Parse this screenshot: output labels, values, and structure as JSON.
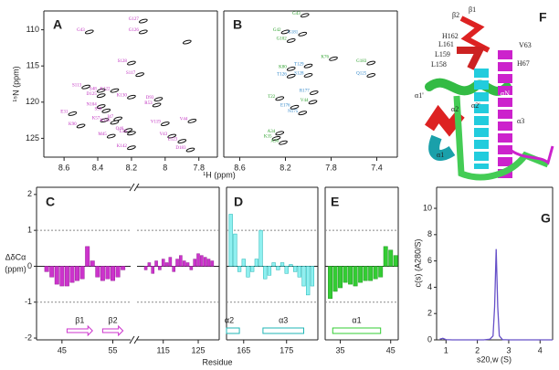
{
  "chart_data": [
    {
      "type": "spectrum",
      "panel": "A",
      "ylabel": "¹⁵N (ppm)",
      "xlim": [
        8.72,
        7.69
      ],
      "ylim": [
        127.6,
        107.4
      ],
      "xticks": [
        8.6,
        8.4,
        8.2,
        8.0,
        7.8
      ],
      "yticks": [
        110,
        115,
        120,
        125
      ],
      "label_color": "#c030c0",
      "peaks": {
        "x": [
          8.13,
          8.13,
          8.45,
          7.87,
          8.2,
          8.15,
          8.47,
          8.38,
          8.3,
          8.38,
          8.2,
          8.04,
          8.05,
          8.38,
          8.55,
          8.35,
          8.28,
          8.36,
          8.3,
          7.84,
          8.0,
          8.5,
          8.22,
          8.2,
          7.96,
          8.32,
          7.9,
          8.2,
          7.85
        ],
        "y": [
          108.8,
          110.3,
          110.3,
          111.7,
          114.6,
          116.2,
          117.9,
          118.4,
          118.4,
          119.1,
          119.3,
          119.6,
          120.4,
          120.6,
          121.6,
          121.2,
          122.3,
          122.5,
          122.8,
          122.6,
          123.0,
          123.3,
          123.9,
          124.3,
          124.7,
          124.7,
          125.4,
          126.3,
          126.6
        ],
        "labels": [
          "G127",
          "G126",
          "G43",
          null,
          "S128",
          "S117",
          "S113",
          "S48",
          "K122",
          "D125",
          "K130",
          "D93",
          "R53",
          "N104",
          "E31",
          "S50",
          "I47",
          "K57",
          "K116",
          "V44",
          "V119",
          "K90",
          "Q46",
          "L58",
          "V43",
          "M45",
          "L123",
          "K142",
          "D183"
        ]
      }
    },
    {
      "type": "spectrum",
      "panel": "B",
      "xlabel": "¹H (ppm)",
      "xlim": [
        8.74,
        7.22
      ],
      "ylim": [
        127.6,
        107.4
      ],
      "xticks": [
        8.6,
        8.2,
        7.8,
        7.4
      ],
      "peaks": {
        "x": [
          8.03,
          8.2,
          8.05,
          8.15,
          7.78,
          7.45,
          7.45,
          8.15,
          8.0,
          8.15,
          8.0,
          7.95,
          8.25,
          7.96,
          8.12,
          8.05,
          8.25,
          8.28,
          8.22
        ],
        "y": [
          108.0,
          110.3,
          110.6,
          111.5,
          114.0,
          114.6,
          116.3,
          115.4,
          115.0,
          116.4,
          116.3,
          118.7,
          119.5,
          120.0,
          120.7,
          121.5,
          124.3,
          125.0,
          125.6
        ],
        "labels": [
          "G43",
          "G42",
          "G181",
          "G102",
          "K76",
          "G183",
          "Q125",
          "K80",
          "T129",
          "T126",
          "S128",
          "R177",
          "T22",
          "V44",
          "E176",
          "N175",
          "A34",
          "K35",
          "A36"
        ]
      },
      "peak_label_colors": [
        "#2ca02c",
        "#2ca02c",
        "#2f86c8",
        "#2ca02c",
        "#2ca02c",
        "#2ca02c",
        "#2f86c8",
        "#2ca02c",
        "#2f86c8",
        "#2f86c8",
        "#2f86c8",
        "#2f86c8",
        "#2ca02c",
        "#2ca02c",
        "#2f86c8",
        "#2f86c8",
        "#2ca02c",
        "#2ca02c",
        "#2ca02c"
      ]
    },
    {
      "type": "bar",
      "panel": "C",
      "ylabel": "ΔδCα",
      "ylabel_unit": "(ppm)",
      "color": "#cc33cc",
      "stroke": "#992299",
      "xlim": [
        40,
        58.5
      ],
      "ylim": [
        -2.05,
        2.2
      ],
      "xticks": [
        45,
        55
      ],
      "yticks": [
        -2,
        -1,
        0,
        1,
        2
      ],
      "ref_lines": [
        -1,
        1
      ],
      "x": [
        42,
        43,
        44,
        45,
        46,
        47,
        48,
        49,
        50,
        51,
        52,
        53,
        54,
        55,
        56,
        57
      ],
      "values": [
        -0.15,
        -0.3,
        -0.5,
        -0.55,
        -0.55,
        -0.45,
        -0.4,
        -0.35,
        0.55,
        0.15,
        -0.3,
        -0.4,
        -0.35,
        -0.4,
        -0.3,
        -0.1
      ],
      "ss": [
        {
          "label": "β1",
          "kind": "strand",
          "start": 46,
          "end": 51
        },
        {
          "label": "β2",
          "kind": "strand",
          "start": 53,
          "end": 57
        }
      ],
      "ss_color": "#cc33cc"
    },
    {
      "type": "bar",
      "color": "#cc33cc",
      "stroke": "#992299",
      "xlim": [
        107.5,
        131
      ],
      "ylim": [
        -2.05,
        2.2
      ],
      "xticks": [
        115,
        125
      ],
      "ref_lines": [
        -1,
        1
      ],
      "x": [
        110,
        111,
        112,
        113,
        114,
        115,
        116,
        117,
        118,
        119,
        120,
        121,
        122,
        123,
        124,
        125,
        126,
        127,
        128,
        129
      ],
      "values": [
        -0.1,
        0.1,
        -0.2,
        0.15,
        -0.1,
        0.2,
        0.1,
        0.25,
        -0.15,
        0.2,
        0.3,
        0.15,
        0.1,
        -0.1,
        0.2,
        0.35,
        0.3,
        0.25,
        0.2,
        0.15
      ]
    },
    {
      "type": "bar",
      "panel": "D",
      "xlabel": "Residue",
      "color": "#8ff0f0",
      "stroke": "#1fb5b5",
      "xlim": [
        161,
        182.3
      ],
      "ylim": [
        -2.05,
        2.2
      ],
      "xticks": [
        165,
        175
      ],
      "ref_lines": [
        -1,
        1
      ],
      "x": [
        162,
        163,
        164,
        165,
        166,
        167,
        168,
        169,
        170,
        171,
        172,
        173,
        174,
        175,
        176,
        177,
        178,
        179,
        180,
        181
      ],
      "values": [
        1.45,
        0.9,
        -0.15,
        0.2,
        -0.3,
        -0.15,
        0.2,
        1.0,
        -0.35,
        -0.25,
        0.1,
        -0.1,
        0.1,
        -0.2,
        0.05,
        -0.15,
        -0.3,
        -0.55,
        -0.8,
        -0.55
      ],
      "ss": [
        {
          "label": "α2",
          "kind": "helix",
          "start": 161,
          "end": 164
        },
        {
          "label": "α3",
          "kind": "helix",
          "start": 169.5,
          "end": 179
        }
      ],
      "ss_color": "#1fb5b5"
    },
    {
      "type": "bar",
      "panel": "E",
      "color": "#33cc33",
      "stroke": "#229922",
      "xlim": [
        32,
        46.5
      ],
      "ylim": [
        -2.05,
        2.2
      ],
      "xticks": [
        35,
        45
      ],
      "ref_lines": [
        -1,
        1
      ],
      "x": [
        33,
        34,
        35,
        36,
        37,
        38,
        39,
        40,
        41,
        42,
        43,
        44,
        45,
        46
      ],
      "values": [
        -0.9,
        -0.7,
        -0.6,
        -0.45,
        -0.5,
        -0.55,
        -0.45,
        -0.4,
        -0.4,
        -0.35,
        -0.3,
        0.55,
        0.45,
        0.3
      ],
      "ss": [
        {
          "label": "α1",
          "kind": "helix",
          "start": 33.5,
          "end": 43
        }
      ],
      "ss_color": "#33cc33"
    },
    {
      "type": "line",
      "panel": "G",
      "ylabel": "c(s) (A280/S)",
      "xlabel": "s20,w (S)",
      "color": "#6650c8",
      "xlim": [
        0.7,
        4.4
      ],
      "ylim": [
        0,
        11.6
      ],
      "xticks": [
        1,
        2,
        3,
        4
      ],
      "yticks": [
        0,
        2,
        4,
        6,
        8,
        10
      ],
      "x": [
        0.8,
        0.9,
        1.0,
        1.2,
        1.4,
        1.6,
        1.8,
        2.0,
        2.2,
        2.4,
        2.5,
        2.55,
        2.6,
        2.65,
        2.7,
        2.8,
        3.0,
        3.2,
        3.4,
        3.6,
        3.8,
        4.0,
        4.2,
        4.4
      ],
      "values": [
        0.05,
        0.12,
        0.02,
        0,
        0,
        0,
        0,
        0,
        0,
        0.05,
        0.3,
        2.5,
        6.9,
        2.5,
        0.3,
        0.02,
        0,
        0,
        0,
        0,
        0,
        0,
        0,
        0
      ]
    }
  ],
  "structure": {
    "panel": "F",
    "labels": [
      "β2",
      "β1",
      "H162",
      "L161",
      "L159",
      "L158",
      "V63",
      "H67",
      "α1'",
      "α2'",
      "αN",
      "α3",
      "α1",
      "α2"
    ]
  }
}
